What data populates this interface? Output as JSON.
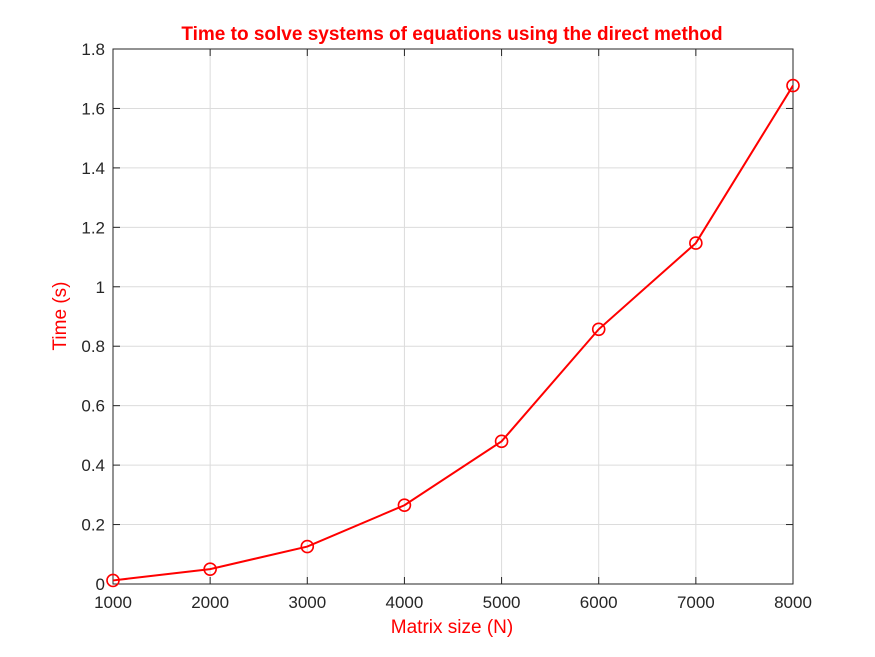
{
  "chart_data": {
    "type": "line",
    "title": "Time to solve systems of equations using the direct method",
    "xlabel": "Matrix size (N)",
    "ylabel": "Time (s)",
    "xlim": [
      1000,
      8000
    ],
    "ylim": [
      0,
      1.8
    ],
    "xticks": [
      1000,
      2000,
      3000,
      4000,
      5000,
      6000,
      7000,
      8000
    ],
    "yticks": [
      0,
      0.2,
      0.4,
      0.6,
      0.8,
      1,
      1.2,
      1.4,
      1.6,
      1.8
    ],
    "ytick_labels": [
      "0",
      "0.2",
      "0.4",
      "0.6",
      "0.8",
      "1",
      "1.2",
      "1.4",
      "1.6",
      "1.8"
    ],
    "grid": true,
    "colors": {
      "series": "#ff0000",
      "title": "#ff0000",
      "labels": "#ff0000",
      "ticks": "#262626",
      "grid": "#dcdcdc"
    },
    "series": [
      {
        "marker": "circle",
        "x": [
          1000,
          2000,
          3000,
          4000,
          5000,
          6000,
          7000,
          8000
        ],
        "y": [
          0.012,
          0.05,
          0.126,
          0.265,
          0.48,
          0.857,
          1.147,
          1.677
        ]
      }
    ]
  }
}
